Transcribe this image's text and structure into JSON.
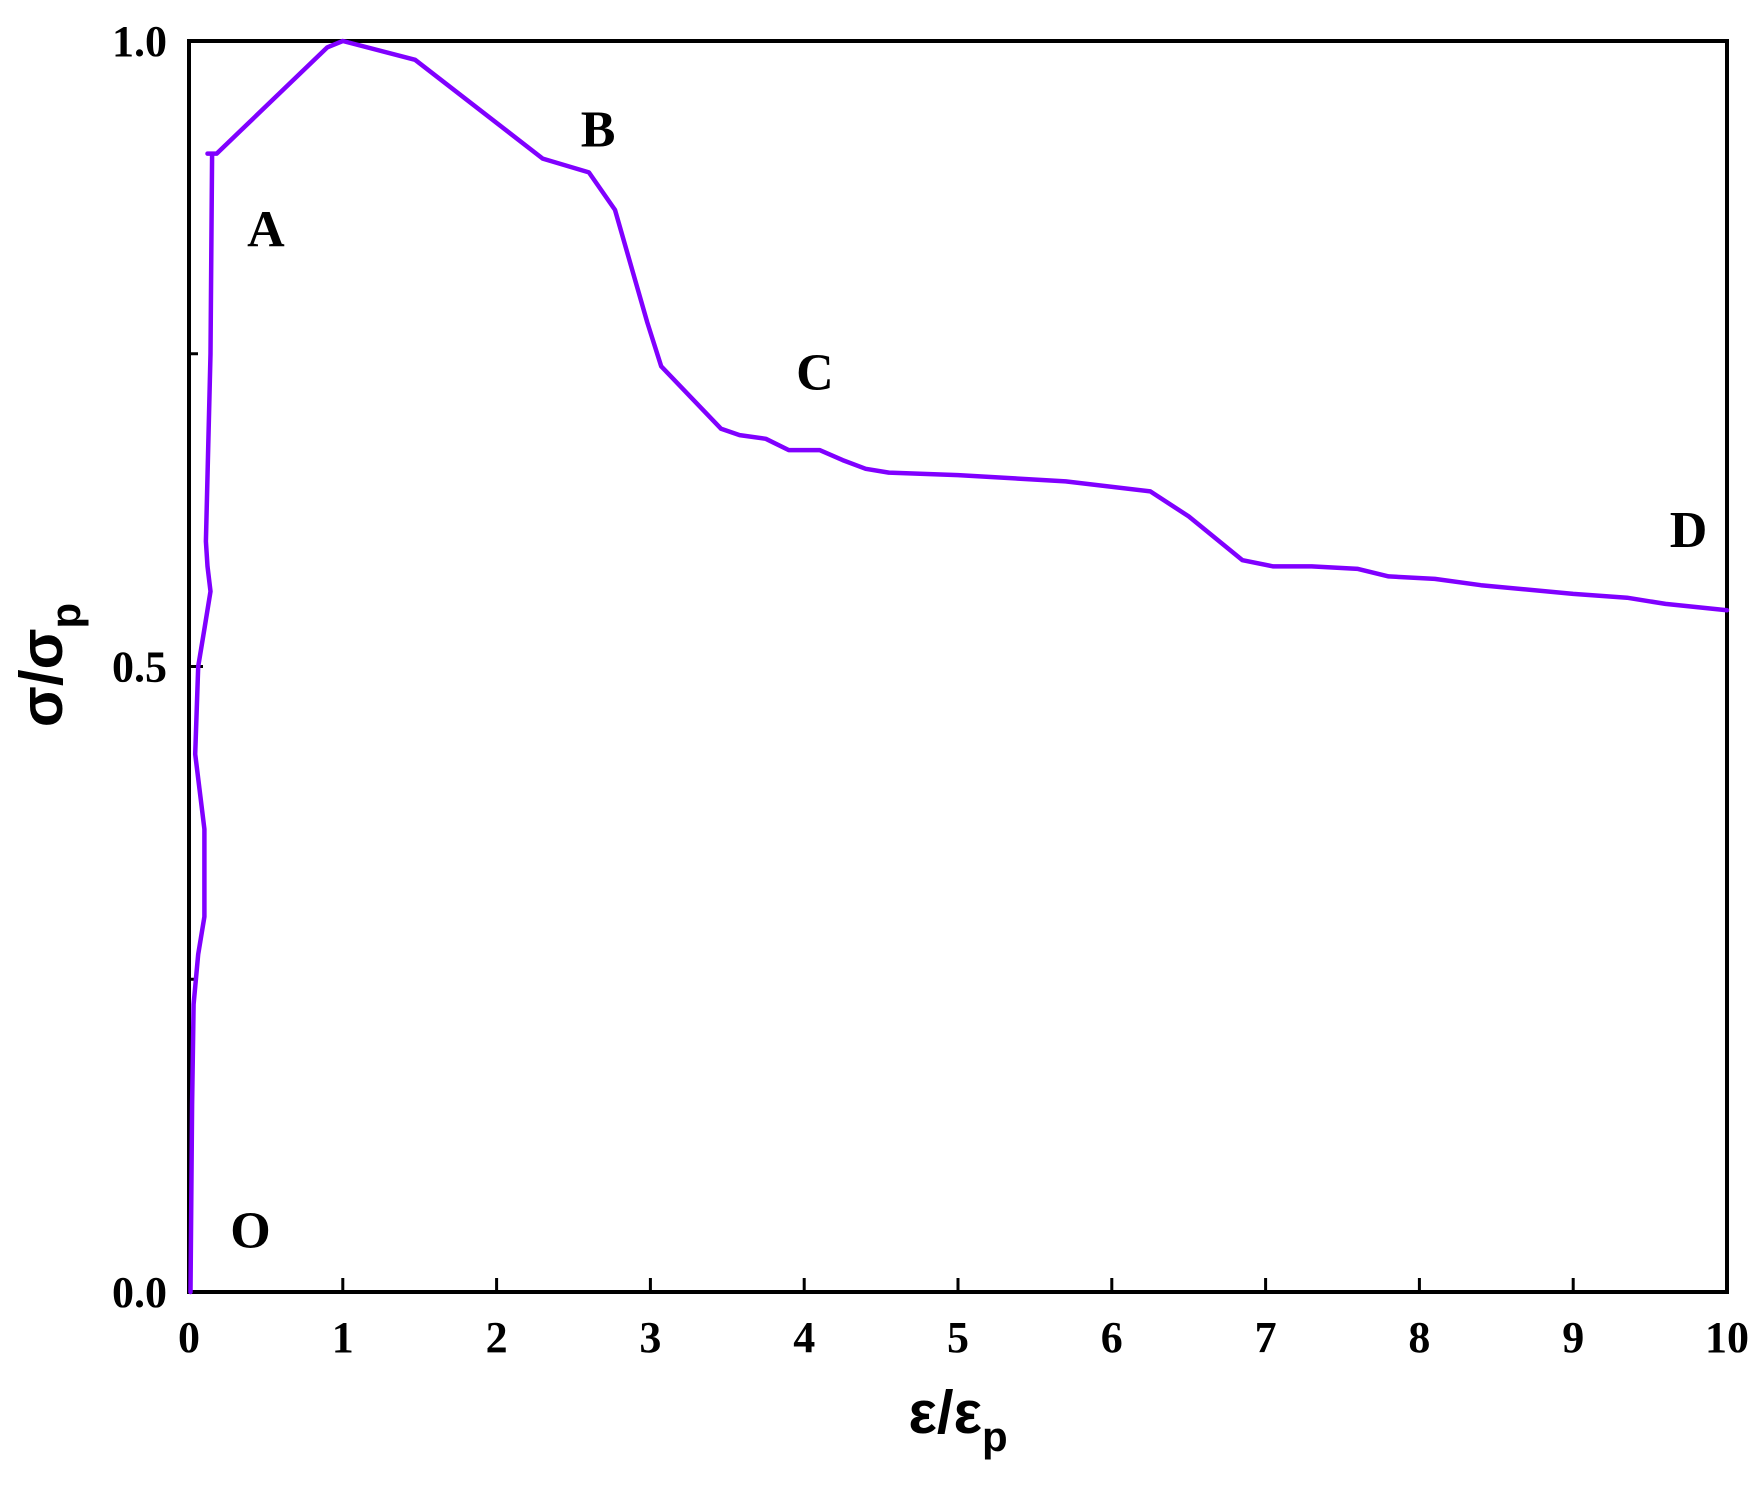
{
  "chart_data": {
    "type": "line",
    "title": "",
    "xlabel": {
      "base": "ε/ε",
      "sub": "p"
    },
    "ylabel": {
      "base": "σ/σ",
      "sub": "p"
    },
    "xlim": [
      0,
      10
    ],
    "ylim": [
      0,
      1
    ],
    "x_ticks": [
      "0",
      "1",
      "2",
      "3",
      "4",
      "5",
      "6",
      "7",
      "8",
      "9",
      "10"
    ],
    "y_ticks": [
      "0.0",
      "0.5",
      "1.0"
    ],
    "grid": false,
    "line_color": "#8000ff",
    "series": [
      {
        "x": [
          0.01,
          0.02,
          0.03,
          0.06,
          0.1,
          0.1,
          0.04,
          0.06,
          0.1,
          0.14,
          0.12,
          0.11,
          0.14,
          0.15,
          0.12,
          0.18,
          0.9,
          1.0,
          1.47,
          2.3,
          2.6,
          2.77,
          2.98,
          3.07,
          3.46,
          3.58,
          3.75,
          3.9,
          4.1,
          4.25,
          4.4,
          4.55,
          5.0,
          5.7,
          6.25,
          6.5,
          6.85,
          7.05,
          7.3,
          7.6,
          7.8,
          8.1,
          8.4,
          9.0,
          9.35,
          9.6,
          10.0
        ],
        "y": [
          0.0,
          0.15,
          0.23,
          0.27,
          0.3,
          0.37,
          0.43,
          0.5,
          0.53,
          0.56,
          0.58,
          0.6,
          0.75,
          0.91,
          0.91,
          0.91,
          0.995,
          1.0,
          0.985,
          0.906,
          0.895,
          0.865,
          0.775,
          0.74,
          0.69,
          0.685,
          0.682,
          0.673,
          0.673,
          0.665,
          0.658,
          0.655,
          0.653,
          0.648,
          0.64,
          0.62,
          0.585,
          0.58,
          0.58,
          0.578,
          0.572,
          0.57,
          0.565,
          0.558,
          0.555,
          0.55,
          0.545
        ]
      }
    ],
    "annotations": [
      {
        "text": "O",
        "x": 0.4,
        "y": 0.05
      },
      {
        "text": "A",
        "x": 0.5,
        "y": 0.85
      },
      {
        "text": "B",
        "x": 2.66,
        "y": 0.93
      },
      {
        "text": "C",
        "x": 4.07,
        "y": 0.736
      },
      {
        "text": "D",
        "x": 9.75,
        "y": 0.61
      }
    ]
  }
}
